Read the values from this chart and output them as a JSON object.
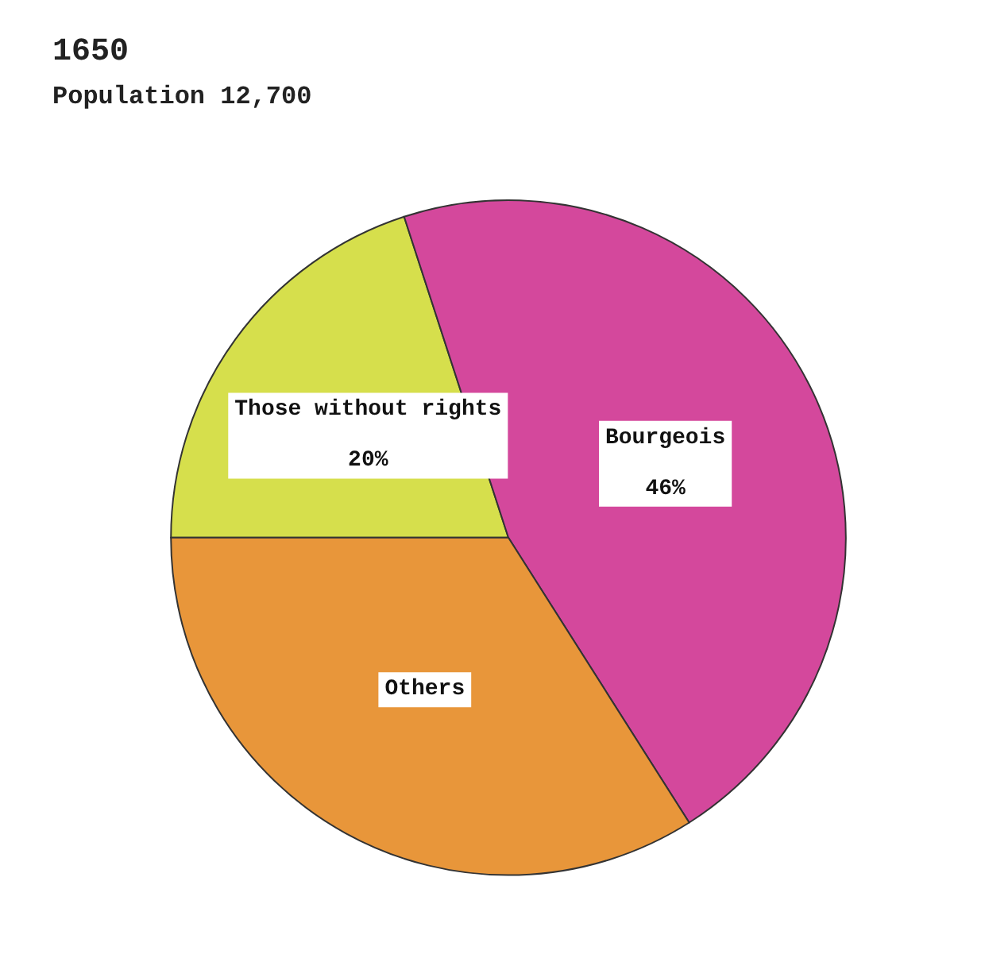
{
  "chart_data": {
    "type": "pie",
    "title": "1650",
    "subtitle": "Population 12,700",
    "categories": [
      "Those without rights",
      "Bourgeois",
      "Others"
    ],
    "values": [
      20,
      46,
      34
    ],
    "colors": [
      "#d6df4c",
      "#d4489c",
      "#e8963a"
    ],
    "value_labels": [
      "20%",
      "46%",
      null
    ]
  }
}
